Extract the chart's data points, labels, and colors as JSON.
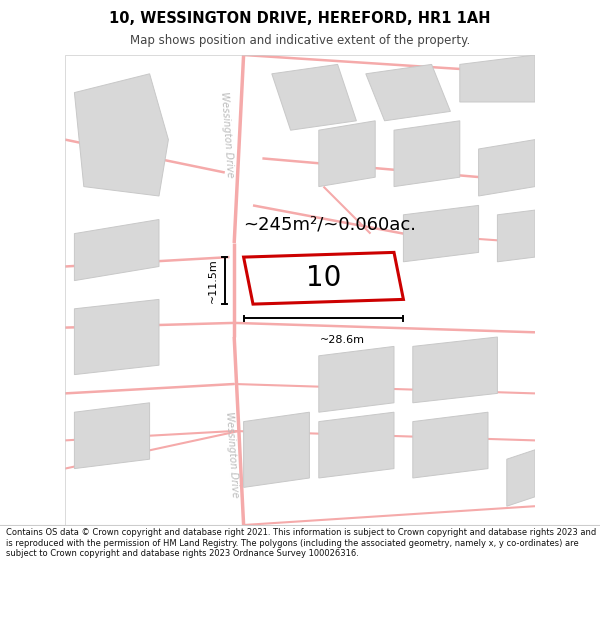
{
  "title": "10, WESSINGTON DRIVE, HEREFORD, HR1 1AH",
  "subtitle": "Map shows position and indicative extent of the property.",
  "footer": "Contains OS data © Crown copyright and database right 2021. This information is subject to Crown copyright and database rights 2023 and is reproduced with the permission of HM Land Registry. The polygons (including the associated geometry, namely x, y co-ordinates) are subject to Crown copyright and database rights 2023 Ordnance Survey 100026316.",
  "area_label": "~245m²/~0.060ac.",
  "width_label": "~28.6m",
  "height_label": "~11.5m",
  "number_label": "10",
  "map_bg": "#f8f8f8",
  "road_color": "#f5aaaa",
  "building_fill": "#d8d8d8",
  "building_edge": "#c8c8c8",
  "highlight_fill": "#ffffff",
  "highlight_edge": "#cc0000",
  "road_label_color": "#bbbbbb",
  "title_color": "#000000",
  "subtitle_color": "#444444",
  "footer_color": "#111111",
  "annotation_color": "#000000",
  "title_fontsize": 10.5,
  "subtitle_fontsize": 8.5,
  "footer_fontsize": 6.0,
  "area_fontsize": 13,
  "number_fontsize": 20,
  "annotation_fontsize": 8,
  "road_label_fontsize": 7
}
